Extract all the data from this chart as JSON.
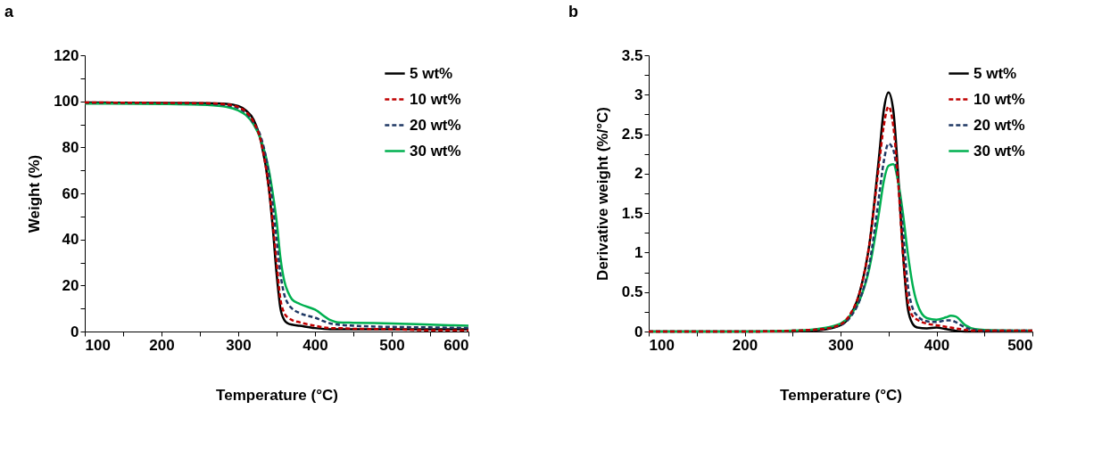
{
  "chart_data": [
    {
      "type": "line",
      "title": "a",
      "xlabel": "Temperature (°C)",
      "ylabel": "Weight (%)",
      "legend": "top right",
      "grid": false,
      "marker": "none",
      "x": [
        100,
        200,
        250,
        280,
        300,
        310,
        320,
        330,
        340,
        345,
        350,
        355,
        360,
        365,
        370,
        380,
        400,
        420,
        430,
        450,
        500,
        550,
        600
      ],
      "xlim": [
        100,
        600
      ],
      "ylim": [
        0,
        120
      ],
      "xticks": [
        100,
        {
          "value": 150,
          "label": null
        },
        200,
        {
          "value": 250,
          "label": null
        },
        300,
        {
          "value": 350,
          "label": null
        },
        400,
        {
          "value": 450,
          "label": null
        },
        500,
        {
          "value": 550,
          "label": null
        },
        600
      ],
      "yticks": [
        0,
        {
          "value": 10,
          "label": null
        },
        20,
        {
          "value": 30,
          "label": null
        },
        40,
        {
          "value": 50,
          "label": null
        },
        60,
        {
          "value": 70,
          "label": null
        },
        80,
        {
          "value": 90,
          "label": null
        },
        100,
        {
          "value": 110,
          "label": null
        },
        120
      ],
      "series": [
        {
          "name": "5 wt%",
          "color": "#000000",
          "line_style": "solid",
          "values": [
            99.5,
            99.3,
            99.2,
            99,
            98,
            96,
            92,
            82,
            62,
            45,
            25,
            10,
            5,
            3.5,
            3,
            2.5,
            1.5,
            1,
            1,
            1,
            1,
            1,
            1
          ]
        },
        {
          "name": "10 wt%",
          "color": "#c00000",
          "line_style": "dashed",
          "values": [
            99.5,
            99.3,
            99.2,
            98.8,
            97.5,
            95.5,
            91,
            82,
            62,
            47,
            30,
            14,
            8,
            6,
            5,
            4,
            2.5,
            1.5,
            1.5,
            1.2,
            1,
            0.5,
            0.5
          ]
        },
        {
          "name": "20 wt%",
          "color": "#1f3864",
          "line_style": "dashed",
          "values": [
            99.4,
            99.2,
            99,
            98.5,
            97,
            95,
            90.5,
            84,
            68,
            55,
            40,
            25,
            16,
            12,
            10,
            8,
            6,
            3.5,
            3,
            2.5,
            2,
            1.8,
            1.5
          ]
        },
        {
          "name": "30 wt%",
          "color": "#00b050",
          "line_style": "solid",
          "values": [
            99,
            98.8,
            98.5,
            97.8,
            96,
            94,
            90,
            83,
            70,
            60,
            48,
            32,
            22,
            17,
            14,
            12,
            9.5,
            5,
            4,
            3.8,
            3.5,
            3,
            2.5
          ]
        }
      ]
    },
    {
      "type": "line",
      "title": "b",
      "xlabel": "Temperature (°C)",
      "ylabel": "Derivative weight (%/°C)",
      "legend": "top right",
      "grid": false,
      "marker": "none",
      "x": [
        100,
        200,
        250,
        280,
        300,
        310,
        320,
        330,
        340,
        345,
        350,
        355,
        360,
        365,
        370,
        375,
        380,
        390,
        400,
        410,
        415,
        420,
        430,
        440,
        450,
        500
      ],
      "xlim": [
        100,
        500
      ],
      "ylim": [
        0,
        3.5
      ],
      "xticks": [
        100,
        {
          "value": 150,
          "label": null
        },
        200,
        {
          "value": 250,
          "label": null
        },
        300,
        {
          "value": 350,
          "label": null
        },
        400,
        {
          "value": 450,
          "label": null
        },
        500
      ],
      "yticks": [
        0,
        {
          "value": 0.25,
          "label": null
        },
        0.5,
        {
          "value": 0.75,
          "label": null
        },
        1,
        {
          "value": 1.25,
          "label": null
        },
        1.5,
        {
          "value": 1.75,
          "label": null
        },
        2,
        {
          "value": 2.25,
          "label": null
        },
        2.5,
        {
          "value": 2.75,
          "label": null
        },
        3,
        {
          "value": 3.25,
          "label": null
        },
        3.5
      ],
      "series": [
        {
          "name": "5 wt%",
          "color": "#000000",
          "line_style": "solid",
          "values": [
            0,
            0,
            0,
            0.02,
            0.08,
            0.2,
            0.5,
            1.1,
            2.2,
            2.8,
            3.03,
            2.8,
            2.0,
            1.0,
            0.3,
            0.1,
            0.05,
            0.04,
            0.05,
            0.03,
            0.02,
            0.01,
            0,
            0,
            0,
            0
          ]
        },
        {
          "name": "10 wt%",
          "color": "#c00000",
          "line_style": "dashed",
          "values": [
            0,
            0,
            0.01,
            0.03,
            0.09,
            0.22,
            0.5,
            1.1,
            2.1,
            2.6,
            2.85,
            2.6,
            1.9,
            1.0,
            0.4,
            0.2,
            0.15,
            0.1,
            0.08,
            0.06,
            0.05,
            0.04,
            0.02,
            0.01,
            0.01,
            0.01
          ]
        },
        {
          "name": "20 wt%",
          "color": "#1f3864",
          "line_style": "dashed",
          "values": [
            0,
            0,
            0.01,
            0.03,
            0.08,
            0.18,
            0.4,
            0.85,
            1.7,
            2.15,
            2.38,
            2.3,
            1.9,
            1.3,
            0.6,
            0.3,
            0.2,
            0.13,
            0.12,
            0.14,
            0.14,
            0.12,
            0.05,
            0.02,
            0.01,
            0.01
          ]
        },
        {
          "name": "30 wt%",
          "color": "#00b050",
          "line_style": "solid",
          "values": [
            0,
            0,
            0.01,
            0.04,
            0.1,
            0.2,
            0.4,
            0.8,
            1.5,
            1.9,
            2.1,
            2.12,
            1.9,
            1.5,
            1.0,
            0.6,
            0.35,
            0.17,
            0.15,
            0.18,
            0.2,
            0.19,
            0.08,
            0.03,
            0.02,
            0.01
          ]
        }
      ]
    }
  ]
}
